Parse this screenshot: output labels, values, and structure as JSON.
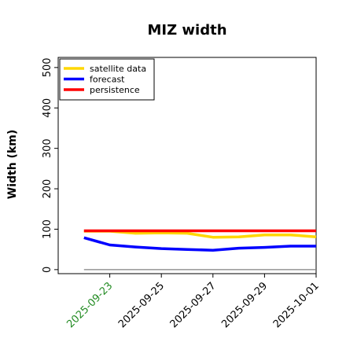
{
  "chart_data": {
    "type": "line",
    "title": "MIZ width",
    "xlabel": "",
    "ylabel": "Width (km)",
    "x": [
      "2025-09-22",
      "2025-09-23",
      "2025-09-24",
      "2025-09-25",
      "2025-09-26",
      "2025-09-27",
      "2025-09-28",
      "2025-09-29",
      "2025-09-30",
      "2025-10-01"
    ],
    "xlim": [
      "2025-09-21",
      "2025-10-01"
    ],
    "ylim": [
      -10,
      525
    ],
    "xticks": [
      "2025-09-23",
      "2025-09-25",
      "2025-09-27",
      "2025-09-29",
      "2025-10-01"
    ],
    "xtick_colors": [
      "#228B22",
      "#000000",
      "#000000",
      "#000000",
      "#000000"
    ],
    "yticks": [
      0,
      100,
      200,
      300,
      400,
      500
    ],
    "series": [
      {
        "name": "satellite data",
        "color": "#FFD700",
        "values": [
          95,
          95,
          90,
          91,
          90,
          80,
          81,
          86,
          86,
          81
        ]
      },
      {
        "name": "forecast",
        "color": "#0000FF",
        "values": [
          79,
          61,
          56,
          52,
          50,
          48,
          53,
          55,
          58,
          58
        ]
      },
      {
        "name": "persistence",
        "color": "#FF0000",
        "values": [
          96,
          96,
          96,
          96,
          96,
          96,
          96,
          96,
          96,
          96
        ]
      }
    ],
    "reference_line": {
      "y": 0,
      "color": "#808080"
    },
    "legend_position": "top-left",
    "grid": false
  }
}
